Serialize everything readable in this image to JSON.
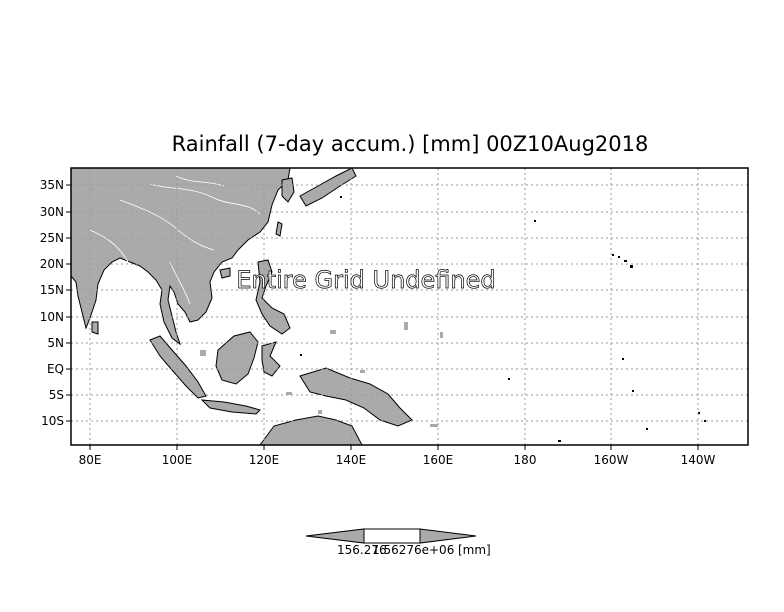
{
  "title": "Rainfall (7-day accum.) [mm] 00Z10Aug2018",
  "overlay_text": "Entire Grid Undefined",
  "lat_labels": [
    "35N",
    "30N",
    "25N",
    "20N",
    "15N",
    "10N",
    "5N",
    "EQ",
    "5S",
    "10S"
  ],
  "lon_labels": [
    "80E",
    "100E",
    "120E",
    "140E",
    "160E",
    "180",
    "160W",
    "140W"
  ],
  "colorbar": {
    "label_left": "156.276",
    "label_mid": "1.56276e+06",
    "units": "[mm]"
  },
  "colors": {
    "land": "#aaaaaa",
    "grid": "#999999",
    "frame": "#000000"
  }
}
